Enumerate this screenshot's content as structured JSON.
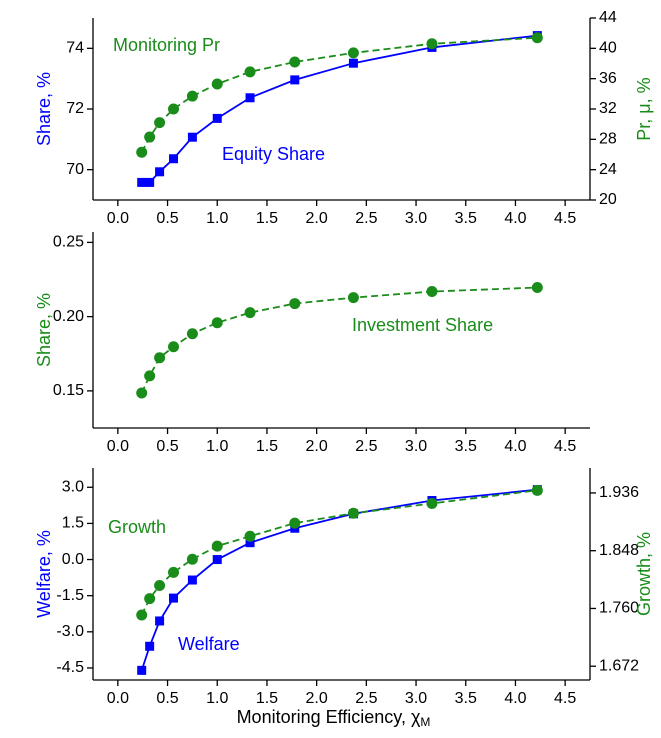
{
  "chart_data": [
    {
      "type": "line",
      "x": [
        0.24,
        0.32,
        0.42,
        0.56,
        0.75,
        1.0,
        1.33,
        1.78,
        2.37,
        3.16,
        4.22
      ],
      "xlim": [
        -0.25,
        4.75
      ],
      "xticks": [
        {
          "value": 0,
          "label": "0.0"
        },
        {
          "value": 0.5,
          "label": "0.5"
        },
        {
          "value": 1,
          "label": "1.0"
        },
        {
          "value": 1.5,
          "label": "1.5"
        },
        {
          "value": 2,
          "label": "2.0"
        },
        {
          "value": 2.5,
          "label": "2.5"
        },
        {
          "value": 3,
          "label": "3.0"
        },
        {
          "value": 3.5,
          "label": "3.5"
        },
        {
          "value": 4,
          "label": "4.0"
        },
        {
          "value": 4.5,
          "label": "4.5"
        }
      ],
      "ylim": [
        69,
        75
      ],
      "yticks": [
        70,
        72,
        74
      ],
      "ylabel": "Share, %",
      "ylabel_color": "#0000ff",
      "y2lim": [
        20,
        44
      ],
      "y2ticks": [
        20,
        24,
        28,
        32,
        36,
        40,
        44
      ],
      "y2label": "Pr, μ, %",
      "y2label_color": "#1a8c1a",
      "series": [
        {
          "name": "Equity Share",
          "color": "#0000ff",
          "marker": "square",
          "dash": false,
          "values": [
            69.58,
            69.58,
            69.93,
            70.36,
            71.07,
            71.69,
            72.37,
            72.96,
            73.51,
            74.03,
            74.42
          ]
        },
        {
          "name": "Monitoring Pr",
          "color": "#1a8c1a",
          "marker": "circle",
          "dash": true,
          "axis": "y2",
          "values": [
            26.3,
            28.3,
            30.2,
            32.0,
            33.7,
            35.3,
            36.9,
            38.2,
            39.4,
            40.6,
            41.4
          ]
        }
      ]
    },
    {
      "type": "line",
      "x": [
        0.24,
        0.32,
        0.42,
        0.56,
        0.75,
        1.0,
        1.33,
        1.78,
        2.37,
        3.16,
        4.22
      ],
      "xlim": [
        -0.25,
        4.75
      ],
      "xticks": [
        {
          "value": 0,
          "label": "0.0"
        },
        {
          "value": 0.5,
          "label": "0.5"
        },
        {
          "value": 1,
          "label": "1.0"
        },
        {
          "value": 1.5,
          "label": "1.5"
        },
        {
          "value": 2,
          "label": "2.0"
        },
        {
          "value": 2.5,
          "label": "2.5"
        },
        {
          "value": 3,
          "label": "3.0"
        },
        {
          "value": 3.5,
          "label": "3.5"
        },
        {
          "value": 4,
          "label": "4.0"
        },
        {
          "value": 4.5,
          "label": "4.5"
        }
      ],
      "ylim": [
        0.125,
        0.257
      ],
      "yticks": [
        0.15,
        {
          "value": 0.2,
          "label": "0.20"
        },
        0.25
      ],
      "ylabel": "Share, %",
      "ylabel_color": "#1a8c1a",
      "series": [
        {
          "name": "Investment Share",
          "color": "#1a8c1a",
          "marker": "circle",
          "dash": true,
          "values": [
            0.1486,
            0.1601,
            0.1723,
            0.1797,
            0.1885,
            0.1959,
            0.2027,
            0.2088,
            0.2128,
            0.2169,
            0.2196
          ]
        }
      ]
    },
    {
      "type": "line",
      "x": [
        0.24,
        0.32,
        0.42,
        0.56,
        0.75,
        1.0,
        1.33,
        1.78,
        2.37,
        3.16,
        4.22
      ],
      "xlim": [
        -0.25,
        4.75
      ],
      "xticks": [
        {
          "value": 0,
          "label": "0.0"
        },
        {
          "value": 0.5,
          "label": "0.5"
        },
        {
          "value": 1,
          "label": "1.0"
        },
        {
          "value": 1.5,
          "label": "1.5"
        },
        {
          "value": 2,
          "label": "2.0"
        },
        {
          "value": 2.5,
          "label": "2.5"
        },
        {
          "value": 3,
          "label": "3.0"
        },
        {
          "value": 3.5,
          "label": "3.5"
        },
        {
          "value": 4,
          "label": "4.0"
        },
        {
          "value": 4.5,
          "label": "4.5"
        }
      ],
      "xlabel": "Monitoring Efficiency, χ",
      "xlabel_sub": "M",
      "ylim": [
        -5,
        3.8
      ],
      "yticks": [
        {
          "value": 3,
          "label": "3.0"
        },
        {
          "value": 1.5,
          "label": "1.5"
        },
        {
          "value": 0,
          "label": "0.0"
        },
        {
          "value": -1.5,
          "label": "-1.5"
        },
        {
          "value": -3,
          "label": "-3.0"
        },
        {
          "value": -4.5,
          "label": "-4.5"
        }
      ],
      "ylabel": "Welfare, %",
      "ylabel_color": "#0000ff",
      "y2lim": [
        1.651,
        1.974
      ],
      "y2ticks": [
        1.672,
        {
          "value": 1.76,
          "label": "1.760"
        },
        1.848,
        1.936
      ],
      "y2label": "Growth, %",
      "y2label_color": "#1a8c1a",
      "series": [
        {
          "name": "Welfare",
          "color": "#0000ff",
          "marker": "square",
          "dash": false,
          "values": [
            -4.6,
            -3.6,
            -2.55,
            -1.6,
            -0.85,
            0.0,
            0.7,
            1.3,
            1.9,
            2.45,
            2.9
          ]
        },
        {
          "name": "Growth",
          "color": "#1a8c1a",
          "marker": "circle",
          "dash": true,
          "axis": "y2",
          "values": [
            1.75,
            1.775,
            1.795,
            1.815,
            1.835,
            1.855,
            1.87,
            1.89,
            1.905,
            1.92,
            1.94
          ]
        }
      ]
    }
  ]
}
